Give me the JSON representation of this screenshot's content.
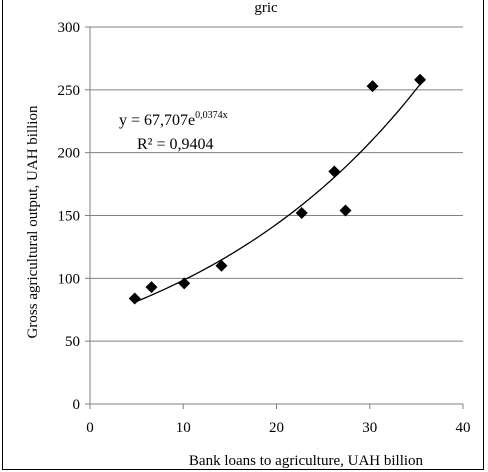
{
  "chart_data": {
    "type": "scatter",
    "title": "",
    "top_text": "gric",
    "xlabel": "Bank loans to agriculture, UAH billion",
    "ylabel": "Gross agricultural output, UAH billion",
    "xlim": [
      0,
      40
    ],
    "ylim": [
      0,
      300
    ],
    "x_ticks": [
      0,
      10,
      20,
      30,
      40
    ],
    "y_ticks": [
      0,
      50,
      100,
      150,
      200,
      250,
      300
    ],
    "grid": "horizontal",
    "series": [
      {
        "marker": "diamond",
        "points": [
          {
            "x": 4.8,
            "y": 84
          },
          {
            "x": 6.6,
            "y": 93
          },
          {
            "x": 10.1,
            "y": 96
          },
          {
            "x": 14.1,
            "y": 110
          },
          {
            "x": 22.7,
            "y": 152
          },
          {
            "x": 26.2,
            "y": 185
          },
          {
            "x": 27.4,
            "y": 154
          },
          {
            "x": 30.3,
            "y": 253
          },
          {
            "x": 35.4,
            "y": 258
          }
        ]
      }
    ],
    "trendline": {
      "type": "exponential",
      "a": 67.707,
      "b": 0.0374,
      "x_range": [
        4.8,
        35.4
      ],
      "equation_prefix": "y = 67,707e",
      "equation_exponent": "0,0374x",
      "r_squared_text": "R² = 0,9404"
    },
    "colors": {
      "marker": "#000000",
      "gridline": "#808080",
      "axis": "#808080",
      "trendline": "#000000"
    }
  }
}
